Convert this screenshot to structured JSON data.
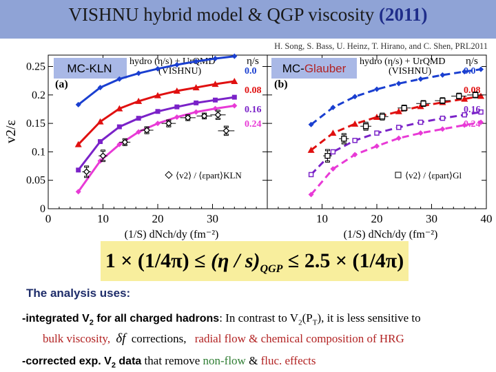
{
  "header": {
    "title_main": "VISHNU hybrid model & QGP viscosity",
    "title_year": "(2011)",
    "citation": "H. Song, S. Bass, U. Heinz, T. Hirano, and C. Shen, PRL2011"
  },
  "chart_data": [
    {
      "type": "line",
      "panel_label": "(a)",
      "model_label": "MC-KLN",
      "legend_header": "hydro (η/s) + UrQMD",
      "legend_sub": "(VISHNU)",
      "legend_eta": "η/s",
      "ylabel": "v2/ε",
      "xlabel": "(1/S) dNch/dy (fm⁻²)",
      "xlim": [
        0,
        40
      ],
      "ylim": [
        0,
        0.27
      ],
      "x_ticks": [
        "0",
        "10",
        "20",
        "30"
      ],
      "y_ticks": [
        "0",
        "0.05",
        "0.1",
        "0.15",
        "0.2",
        "0.25"
      ],
      "y_tick_values": [
        0,
        0.05,
        0.1,
        0.15,
        0.2,
        0.25
      ],
      "x_tick_values": [
        0,
        10,
        20,
        30
      ],
      "series": [
        {
          "name": "0.0",
          "color": "#1a3fd0",
          "marker": "diamond",
          "dash": "solid",
          "x": [
            5.5,
            9.5,
            13,
            16.5,
            20,
            23.5,
            27,
            30.5,
            34
          ],
          "y": [
            0.183,
            0.213,
            0.228,
            0.238,
            0.246,
            0.253,
            0.259,
            0.264,
            0.268
          ]
        },
        {
          "name": "0.08",
          "color": "#e01010",
          "marker": "triangle",
          "dash": "solid",
          "x": [
            5.5,
            9.5,
            13,
            16.5,
            20,
            23.5,
            27,
            30.5,
            34
          ],
          "y": [
            0.113,
            0.153,
            0.176,
            0.189,
            0.199,
            0.207,
            0.213,
            0.219,
            0.224
          ]
        },
        {
          "name": "0.16",
          "color": "#7a22c8",
          "marker": "square",
          "dash": "solid",
          "x": [
            5.5,
            9.5,
            13,
            16.5,
            20,
            23.5,
            27,
            30.5,
            34
          ],
          "y": [
            0.068,
            0.118,
            0.144,
            0.159,
            0.171,
            0.179,
            0.186,
            0.191,
            0.196
          ]
        },
        {
          "name": "0.24",
          "color": "#e83ad6",
          "marker": "diamond",
          "dash": "solid",
          "x": [
            5.5,
            9.5,
            13,
            16.5,
            20,
            23.5,
            27,
            30.5,
            34
          ],
          "y": [
            0.03,
            0.084,
            0.113,
            0.135,
            0.15,
            0.161,
            0.17,
            0.176,
            0.181
          ]
        }
      ],
      "data_points": {
        "legend": "⟨v2⟩ / ⟨εpart⟩KLN",
        "marker": "open-diamond",
        "x": [
          7,
          10,
          14,
          18,
          22,
          25.5,
          28.5,
          31,
          32.5
        ],
        "y": [
          0.065,
          0.093,
          0.117,
          0.138,
          0.15,
          0.16,
          0.163,
          0.165,
          0.137
        ],
        "xerr": [
          0.8,
          0.8,
          1.0,
          1.2,
          1.3,
          1.4,
          1.4,
          1.4,
          1.5
        ],
        "yerr": [
          0.009,
          0.009,
          0.005,
          0.005,
          0.005,
          0.004,
          0.004,
          0.007,
          0.007
        ]
      }
    },
    {
      "type": "line",
      "panel_label": "(b)",
      "model_label": "MC-",
      "model_label_accent": "Glauber",
      "legend_header": "hydro (η/s) + UrQMD",
      "legend_sub": "(VISHNU)",
      "legend_eta": "η/s",
      "xlabel": "(1/S) dNch/dy (fm⁻²)",
      "xlim": [
        0,
        40
      ],
      "ylim": [
        0,
        0.27
      ],
      "x_ticks": [
        "0",
        "10",
        "20",
        "30",
        "40"
      ],
      "x_tick_values": [
        0,
        10,
        20,
        30,
        40
      ],
      "series": [
        {
          "name": "0.0",
          "color": "#1a3fd0",
          "marker": "diamond",
          "dash": "dashed",
          "x": [
            8,
            12,
            16,
            20,
            24,
            28,
            32,
            36,
            39
          ],
          "y": [
            0.148,
            0.178,
            0.197,
            0.21,
            0.22,
            0.228,
            0.235,
            0.241,
            0.245
          ]
        },
        {
          "name": "0.08",
          "color": "#e01010",
          "marker": "triangle",
          "dash": "dashed",
          "x": [
            8,
            12,
            16,
            20,
            24,
            28,
            32,
            36,
            39
          ],
          "y": [
            0.103,
            0.133,
            0.149,
            0.161,
            0.171,
            0.18,
            0.187,
            0.193,
            0.198
          ]
        },
        {
          "name": "0.16",
          "color": "#7a22c8",
          "marker": "open-square",
          "dash": "dashed",
          "x": [
            8,
            12,
            16,
            20,
            24,
            28,
            32,
            36,
            39
          ],
          "y": [
            0.06,
            0.1,
            0.12,
            0.133,
            0.143,
            0.152,
            0.159,
            0.165,
            0.17
          ]
        },
        {
          "name": "0.24",
          "color": "#e83ad6",
          "marker": "diamond",
          "dash": "dashed",
          "x": [
            8,
            12,
            16,
            20,
            24,
            28,
            32,
            36,
            39
          ],
          "y": [
            0.025,
            0.07,
            0.095,
            0.11,
            0.124,
            0.133,
            0.14,
            0.147,
            0.152
          ]
        }
      ],
      "data_points": {
        "legend": "⟨v2⟩ / ⟨εpart⟩Gl",
        "marker": "open-square",
        "x": [
          11,
          14,
          18,
          21,
          25,
          28.5,
          32,
          35,
          38
        ],
        "y": [
          0.093,
          0.123,
          0.145,
          0.162,
          0.177,
          0.185,
          0.19,
          0.198,
          0.2
        ],
        "xerr": [
          0.8,
          0.9,
          1.0,
          1.1,
          1.2,
          1.3,
          1.4,
          1.4,
          1.5
        ],
        "yerr": [
          0.01,
          0.008,
          0.006,
          0.005,
          0.004,
          0.004,
          0.004,
          0.004,
          0.004
        ]
      }
    }
  ],
  "formula": {
    "left": "1 × (1/4π) ≤ ",
    "mid": "(η / s)",
    "sub": "QGP",
    "right": " ≤ 2.5 × (1/4π)"
  },
  "notes": {
    "intro": "The analysis uses:",
    "l1_a": "-integrated V",
    "l1_sub": "2",
    "l1_b": " for all charged hadrons",
    "l1_c": ": In contrast to V",
    "l1_c_sub": "2",
    "l1_d": "(P",
    "l1_d_sub": "T",
    "l1_e": "),  it is less sensitive to",
    "l2_a": "bulk viscosity, ",
    "l2_df": "δf",
    "l2_b": " corrections,",
    "l2_c": "radial flow & chemical composition of  HRG",
    "l3_a": "-corrected exp. V",
    "l3_sub": "2",
    "l3_b": " data",
    "l3_c": " that remove ",
    "l3_d": "non-flow",
    "l3_e": " & ",
    "l3_f": "fluc. effects"
  }
}
